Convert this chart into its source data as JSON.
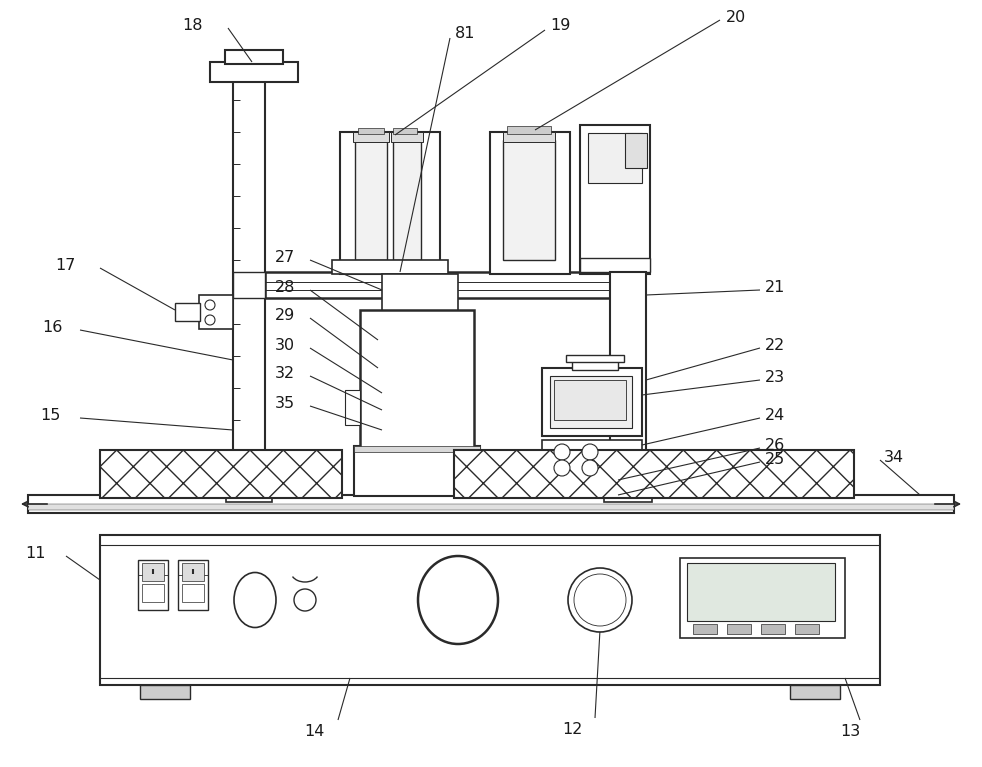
{
  "bg_color": "#ffffff",
  "line_color": "#2a2a2a",
  "label_color": "#1a1a1a",
  "figsize": [
    9.82,
    7.67
  ],
  "dpi": 100
}
